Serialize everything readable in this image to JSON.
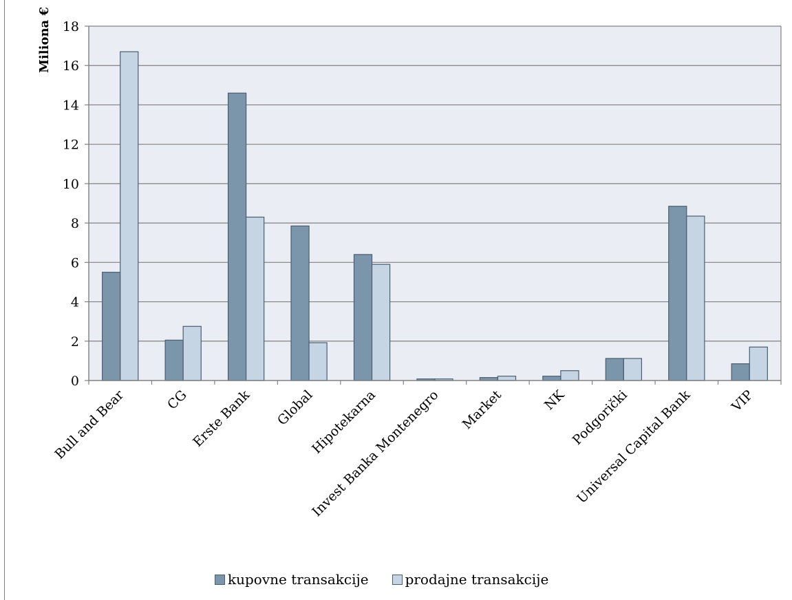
{
  "chart_data": {
    "type": "bar",
    "title": "",
    "xlabel": "",
    "ylabel": "Miliona €",
    "ylim": [
      0,
      18
    ],
    "yticks": [
      "0",
      "2",
      "4",
      "6",
      "8",
      "10",
      "12",
      "14",
      "16",
      "18"
    ],
    "grid": true,
    "legend_position": "bottom",
    "categories": [
      "Bull and Bear",
      "CG",
      "Erste Bank",
      "Global",
      "Hipotekarna",
      "Invest Banka Montenegro",
      "Market",
      "NK",
      "Podgorički",
      "Universal Capital  Bank",
      "VIP"
    ],
    "series": [
      {
        "name": "kupovne transakcije",
        "color": "#7b95aa",
        "values": [
          5.5,
          2.05,
          14.6,
          7.85,
          6.4,
          0.08,
          0.15,
          0.22,
          1.12,
          8.85,
          0.85
        ]
      },
      {
        "name": "prodajne  transakcije",
        "color": "#c5d5e4",
        "values": [
          16.7,
          2.75,
          8.3,
          1.92,
          5.9,
          0.08,
          0.22,
          0.5,
          1.12,
          8.35,
          1.7
        ]
      }
    ]
  },
  "colors": {
    "plot_background": "#eaeef4",
    "gridline": "#808080",
    "bar_border": "#4a5d70"
  }
}
